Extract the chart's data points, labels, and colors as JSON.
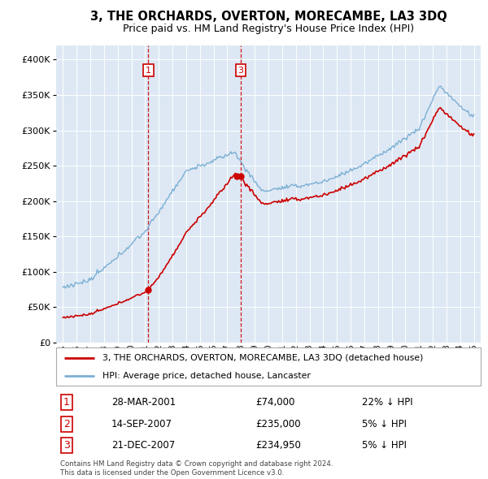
{
  "title": "3, THE ORCHARDS, OVERTON, MORECAMBE, LA3 3DQ",
  "subtitle": "Price paid vs. HM Land Registry's House Price Index (HPI)",
  "legend_property": "3, THE ORCHARDS, OVERTON, MORECAMBE, LA3 3DQ (detached house)",
  "legend_hpi": "HPI: Average price, detached house, Lancaster",
  "footer_line1": "Contains HM Land Registry data © Crown copyright and database right 2024.",
  "footer_line2": "This data is licensed under the Open Government Licence v3.0.",
  "transactions": [
    {
      "label": "1",
      "date": "28-MAR-2001",
      "price": 74000,
      "price_str": "£74,000",
      "pct_str": "22% ↓ HPI",
      "x": 2001.24
    },
    {
      "label": "2",
      "date": "14-SEP-2007",
      "price": 235000,
      "price_str": "£235,000",
      "pct_str": "5% ↓ HPI",
      "x": 2007.71
    },
    {
      "label": "3",
      "date": "21-DEC-2007",
      "price": 234950,
      "price_str": "£234,950",
      "pct_str": "5% ↓ HPI",
      "x": 2007.97
    }
  ],
  "vlines": [
    2001.24,
    2007.97
  ],
  "property_color": "#cc0000",
  "hpi_color": "#7bafd4",
  "background_color": "#dde8f4",
  "grid_color": "#ffffff",
  "ylim": [
    0,
    420000
  ],
  "yticks": [
    0,
    50000,
    100000,
    150000,
    200000,
    250000,
    300000,
    350000,
    400000
  ],
  "xlim": [
    1994.5,
    2025.5
  ],
  "xlabel_years": [
    1995,
    1996,
    1997,
    1998,
    1999,
    2000,
    2001,
    2002,
    2003,
    2004,
    2005,
    2006,
    2007,
    2008,
    2009,
    2010,
    2011,
    2012,
    2013,
    2014,
    2015,
    2016,
    2017,
    2018,
    2019,
    2020,
    2021,
    2022,
    2023,
    2024,
    2025
  ]
}
